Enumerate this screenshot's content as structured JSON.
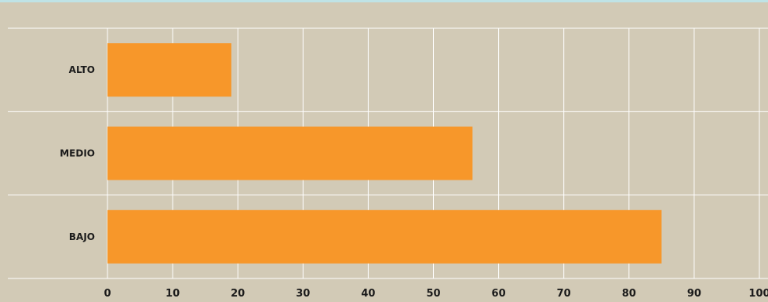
{
  "chart_data": {
    "type": "bar",
    "orientation": "horizontal",
    "categories": [
      "ALTO",
      "MEDIO",
      "BAJO"
    ],
    "values": [
      19,
      56,
      85
    ],
    "xlim": [
      0,
      100
    ],
    "xticks": [
      "0",
      "10",
      "20",
      "30",
      "40",
      "50",
      "60",
      "70",
      "80",
      "90",
      "100"
    ],
    "grid": true,
    "colors": {
      "background": "#d2cab6",
      "bar": "#f7972a",
      "grid": "#ffffff",
      "top_border": "#bfe3e6"
    }
  }
}
